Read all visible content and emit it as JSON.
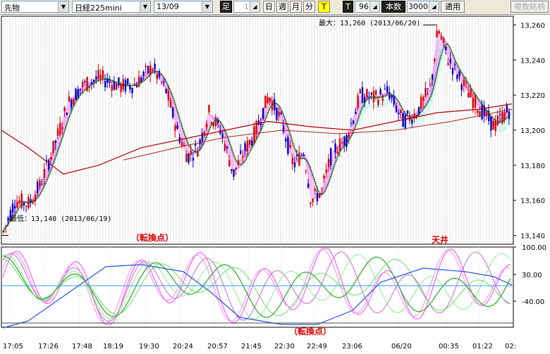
{
  "toolbar": {
    "market": "先物",
    "instrument": "日経225mini",
    "contract": "13/09",
    "bar_label": "足",
    "bar_count": "1",
    "day": "日",
    "week": "週",
    "month": "月",
    "minute": "分",
    "t_yellow": "T",
    "t_dark": "T",
    "period_value": "96",
    "honsu": "本数",
    "count_value": "3000",
    "apply": "適用",
    "multi": "複数銘柄"
  },
  "annotations": {
    "max_label": "最大：13,260 (2013/06/20)",
    "min_label": "最低：13,140 (2013/06/19)",
    "turning_top": "（転換点）",
    "tenjo": "天井",
    "turning_bottom": "（転換点）"
  },
  "chart_data": {
    "type": "candlestick",
    "price_axis": {
      "ticks": [
        "13,260",
        "13,240",
        "13,220",
        "13,200",
        "13,180",
        "13,160",
        "13,140"
      ],
      "ylim": [
        13135,
        13265
      ]
    },
    "osc_axis": {
      "ticks": [
        "100.00",
        "30.00",
        "-40.00"
      ]
    },
    "time_labels": [
      "17:05",
      "17:26",
      "17:48",
      "18:19",
      "19:30",
      "20:24",
      "20:57",
      "21:45",
      "22:30",
      "22:49",
      "23:06",
      "06/20",
      "00:35",
      "01:22",
      "02:"
    ],
    "colors": {
      "up": "#e00000",
      "down": "#0000cc",
      "ma_green": "#007700",
      "ma_red": "#b00000",
      "ribbon": "#ff55ff",
      "fill": "#aaeeee"
    }
  }
}
